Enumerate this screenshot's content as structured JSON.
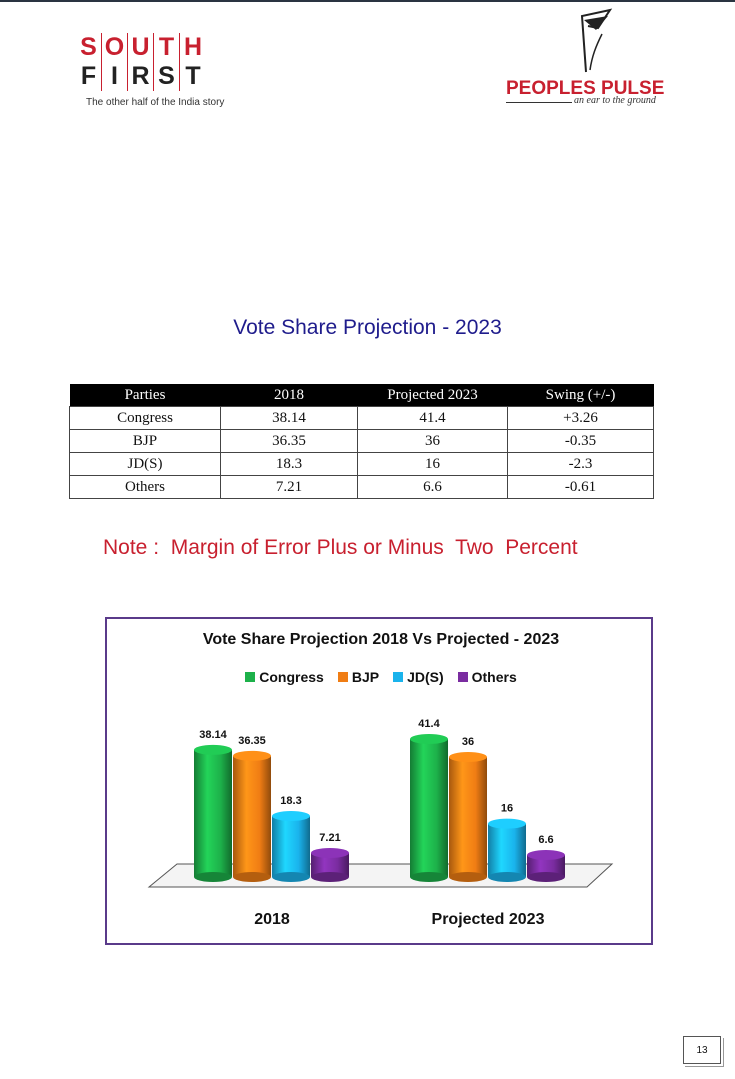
{
  "logo_left": {
    "row1": [
      "S",
      "O",
      "U",
      "T",
      "H"
    ],
    "row2": [
      "F",
      "I",
      "R",
      "S",
      "T"
    ],
    "tagline": "The other half of the India story"
  },
  "logo_right": {
    "name": "PEOPLES PULSE",
    "tagline": "an ear to the ground"
  },
  "page_title": "Vote Share Projection - 2023",
  "table": {
    "headers": [
      "Parties",
      "2018",
      "Projected 2023",
      "Swing (+/-)"
    ],
    "rows": [
      [
        "Congress",
        "38.14",
        "41.4",
        "+3.26"
      ],
      [
        "BJP",
        "36.35",
        "36",
        "-0.35"
      ],
      [
        "JD(S)",
        "18.3",
        "16",
        "-2.3"
      ],
      [
        "Others",
        "7.21",
        "6.6",
        "-0.61"
      ]
    ]
  },
  "note": "Note :  Margin of Error Plus or Minus  Two  Percent",
  "page_number": "13",
  "chart_data": {
    "type": "bar",
    "title": "Vote Share Projection 2018 Vs Projected - 2023",
    "categories": [
      "2018",
      "Projected 2023"
    ],
    "series": [
      {
        "name": "Congress",
        "values": [
          38.14,
          41.4
        ],
        "color": "#1db14a"
      },
      {
        "name": "BJP",
        "values": [
          36.35,
          36
        ],
        "color": "#f07d14"
      },
      {
        "name": "JD(S)",
        "values": [
          18.3,
          16
        ],
        "color": "#1ab3ec"
      },
      {
        "name": "Others",
        "values": [
          7.21,
          6.6
        ],
        "color": "#7a2ca0"
      }
    ],
    "legend_position": "top",
    "grid": false,
    "ylim": [
      0,
      45
    ]
  }
}
